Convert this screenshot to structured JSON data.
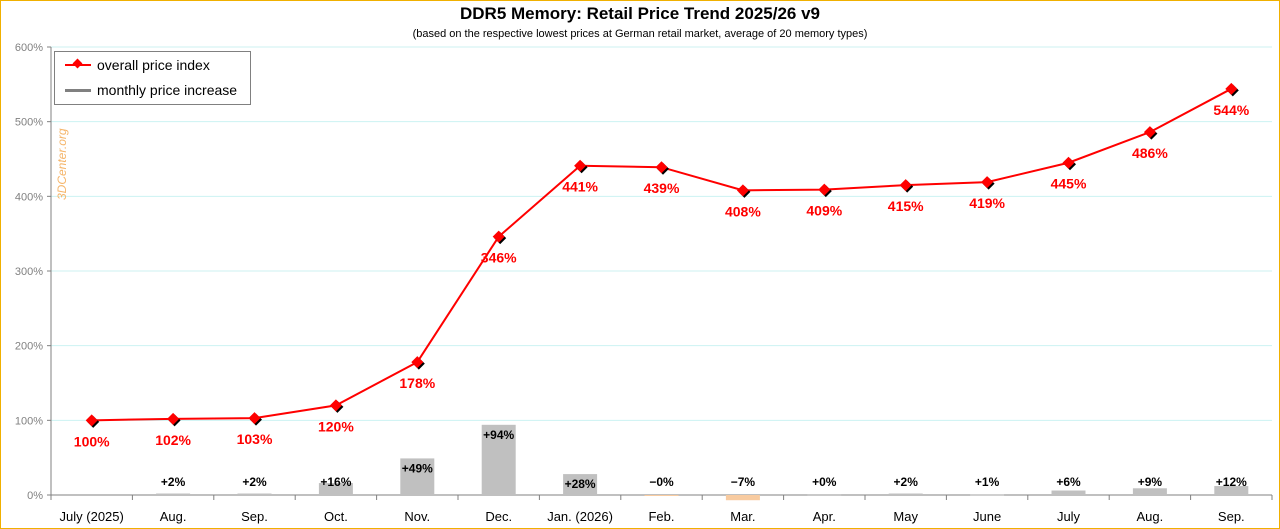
{
  "chart_data": {
    "type": "line",
    "title": "DDR5 Memory: Retail Price Trend 2025/26 v9",
    "subtitle": "(based on the respective lowest prices at German retail market, average of 20 memory types)",
    "categories": [
      "July (2025)",
      "Aug.",
      "Sep.",
      "Oct.",
      "Nov.",
      "Dec.",
      "Jan. (2026)",
      "Feb.",
      "Mar.",
      "Apr.",
      "May",
      "June",
      "July",
      "Aug.",
      "Sep."
    ],
    "y_ticks": [
      "0%",
      "100%",
      "200%",
      "300%",
      "400%",
      "500%",
      "600%"
    ],
    "ylim": [
      0,
      600
    ],
    "grid": true,
    "legend_position": "top-left",
    "watermark": "3DCenter.org",
    "series": [
      {
        "name": "overall price index",
        "type": "line",
        "color": "#ff0000",
        "values": [
          100,
          102,
          103,
          120,
          178,
          346,
          441,
          439,
          408,
          409,
          415,
          419,
          445,
          486,
          544
        ],
        "labels": [
          "100%",
          "102%",
          "103%",
          "120%",
          "178%",
          "346%",
          "441%",
          "439%",
          "408%",
          "409%",
          "415%",
          "419%",
          "445%",
          "486%",
          "544%"
        ]
      },
      {
        "name": "monthly price increase",
        "type": "bar",
        "color": "#c0c0c0",
        "negative_color": "#f8cba0",
        "values": [
          null,
          2,
          2,
          16,
          49,
          94,
          28,
          -0.5,
          -7,
          0.2,
          2,
          1,
          6,
          9,
          12
        ],
        "labels": [
          "",
          "+2%",
          "+2%",
          "+16%",
          "+49%",
          "+94%",
          "+28%",
          "−0%",
          "−7%",
          "+0%",
          "+2%",
          "+1%",
          "+6%",
          "+9%",
          "+12%"
        ]
      }
    ]
  },
  "legend": {
    "line_label": "overall price index",
    "bar_label": "monthly price increase"
  }
}
